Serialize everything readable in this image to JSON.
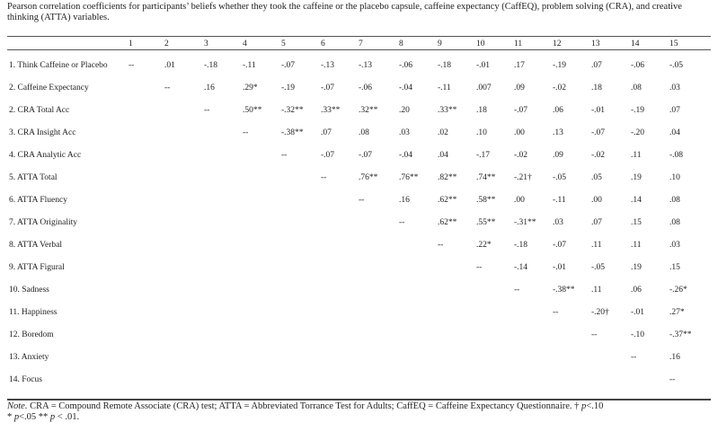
{
  "caption": "Pearson correlation coefficients for participants’ beliefs whether they took the caffeine or the placebo capsule, caffeine expectancy (CaffEQ), problem solving (CRA), and creative thinking (ATTA) variables.",
  "columns": [
    "1",
    "2",
    "3",
    "4",
    "5",
    "6",
    "7",
    "8",
    "9",
    "10",
    "11",
    "12",
    "13",
    "14",
    "15"
  ],
  "rows": [
    {
      "label": "1. Think Caffeine or Placebo",
      "cells": [
        "--",
        ".01",
        "-.18",
        "-.11",
        "-.07",
        "-.13",
        "-.13",
        "-.06",
        "-.18",
        "-.01",
        ".17",
        "-.19",
        ".07",
        "-.06",
        "-.05"
      ]
    },
    {
      "label": "2. Caffeine Expectancy",
      "cells": [
        "",
        "--",
        ".16",
        ".29*",
        "-.19",
        "-.07",
        "-.06",
        "-.04",
        "-.11",
        ".007",
        ".09",
        "-.02",
        ".18",
        ".08",
        ".03"
      ]
    },
    {
      "label": "2. CRA Total Acc",
      "cells": [
        "",
        "",
        "--",
        ".50**",
        "-.32**",
        ".33**",
        ".32**",
        ".20",
        ".33**",
        ".18",
        "-.07",
        ".06",
        "-.01",
        "-.19",
        ".07"
      ]
    },
    {
      "label": "3. CRA Insight Acc",
      "cells": [
        "",
        "",
        "",
        "--",
        "-.38**",
        ".07",
        ".08",
        ".03",
        ".02",
        ".10",
        ".00",
        ".13",
        "-.07",
        "-.20",
        ".04"
      ]
    },
    {
      "label": "4. CRA Analytic Acc",
      "cells": [
        "",
        "",
        "",
        "",
        "--",
        "-.07",
        "-.07",
        "-.04",
        ".04",
        "-.17",
        "-.02",
        ".09",
        "-.02",
        ".11",
        "-.08"
      ]
    },
    {
      "label": "5. ATTA Total",
      "cells": [
        "",
        "",
        "",
        "",
        "",
        "--",
        ".76**",
        ".76**",
        ".82**",
        ".74**",
        "-.21†",
        "-.05",
        ".05",
        ".19",
        ".10"
      ]
    },
    {
      "label": "6. ATTA Fluency",
      "cells": [
        "",
        "",
        "",
        "",
        "",
        "",
        "--",
        ".16",
        ".62**",
        ".58**",
        ".00",
        "-.11",
        ".00",
        ".14",
        ".08"
      ]
    },
    {
      "label": "7. ATTA Originality",
      "cells": [
        "",
        "",
        "",
        "",
        "",
        "",
        "",
        "--",
        ".62**",
        ".55**",
        "-.31**",
        ".03",
        ".07",
        ".15",
        ".08"
      ]
    },
    {
      "label": "8. ATTA Verbal",
      "cells": [
        "",
        "",
        "",
        "",
        "",
        "",
        "",
        "",
        "--",
        ".22*",
        "-.18",
        "-.07",
        ".11",
        ".11",
        ".03"
      ]
    },
    {
      "label": "9. ATTA Figural",
      "cells": [
        "",
        "",
        "",
        "",
        "",
        "",
        "",
        "",
        "",
        "--",
        "-.14",
        "-.01",
        "-.05",
        ".19",
        ".15"
      ]
    },
    {
      "label": "10. Sadness",
      "cells": [
        "",
        "",
        "",
        "",
        "",
        "",
        "",
        "",
        "",
        "",
        "--",
        "-.38**",
        ".11",
        ".06",
        "-.26*"
      ]
    },
    {
      "label": "11. Happiness",
      "cells": [
        "",
        "",
        "",
        "",
        "",
        "",
        "",
        "",
        "",
        "",
        "",
        "--",
        "-.20†",
        "-.01",
        ".27*"
      ]
    },
    {
      "label": "12. Boredom",
      "cells": [
        "",
        "",
        "",
        "",
        "",
        "",
        "",
        "",
        "",
        "",
        "",
        "",
        "--",
        "-.10",
        "-.37**"
      ]
    },
    {
      "label": "13. Anxiety",
      "cells": [
        "",
        "",
        "",
        "",
        "",
        "",
        "",
        "",
        "",
        "",
        "",
        "",
        "",
        "--",
        ".16"
      ]
    },
    {
      "label": "14. Focus",
      "cells": [
        "",
        "",
        "",
        "",
        "",
        "",
        "",
        "",
        "",
        "",
        "",
        "",
        "",
        "",
        "--"
      ]
    }
  ],
  "note": {
    "lead": "Note.",
    "text": "  CRA = Compound Remote Associate (CRA) test; ATTA = Abbreviated Torrance Test for Adults; CaffEQ = Caffeine Expectancy Questionnaire. † ",
    "p1": "p",
    "t1": "<.10",
    "line2a": "* ",
    "p2": "p",
    "t2": "<.05 ** ",
    "p3": "p",
    "t3": " < .01."
  }
}
